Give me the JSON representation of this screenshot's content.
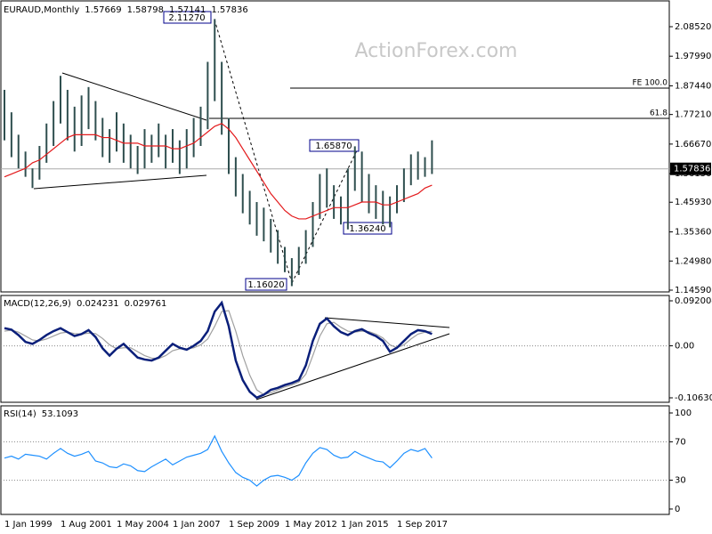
{
  "chart_data": [
    {
      "type": "ohlc",
      "title": "EURAUD,Monthly",
      "header_values": [
        1.57669,
        1.58798,
        1.57141,
        1.57836
      ],
      "watermark": "ActionForex.com",
      "categories": [
        "1 Jan 1999",
        null,
        null,
        null,
        null,
        null,
        null,
        null,
        "1 Aug 2001",
        null,
        null,
        null,
        null,
        null,
        null,
        null,
        "1 May 2004",
        null,
        null,
        null,
        null,
        null,
        null,
        null,
        "1 Jan 2007",
        null,
        null,
        null,
        null,
        null,
        null,
        null,
        "1 Sep 2009",
        null,
        null,
        null,
        null,
        null,
        null,
        null,
        "1 May 2012",
        null,
        null,
        null,
        null,
        null,
        null,
        null,
        "1 Jan 2015",
        null,
        null,
        null,
        null,
        null,
        null,
        null,
        "1 Sep 2017",
        null,
        null,
        null,
        null,
        null
      ],
      "high": [
        1.86,
        1.78,
        1.7,
        1.64,
        1.58,
        1.66,
        1.74,
        1.82,
        1.91,
        1.86,
        1.8,
        1.84,
        1.87,
        1.82,
        1.76,
        1.72,
        1.78,
        1.74,
        1.7,
        1.66,
        1.72,
        1.7,
        1.74,
        1.7,
        1.72,
        1.68,
        1.72,
        1.76,
        1.8,
        1.96,
        2.1127,
        1.96,
        1.76,
        1.62,
        1.56,
        1.5,
        1.46,
        1.44,
        1.4,
        1.36,
        1.3,
        1.26,
        1.3,
        1.36,
        1.46,
        1.56,
        1.58,
        1.52,
        1.48,
        1.58,
        1.6587,
        1.64,
        1.56,
        1.52,
        1.5,
        1.48,
        1.52,
        1.58,
        1.63,
        1.64,
        1.62,
        1.68
      ],
      "low": [
        1.68,
        1.62,
        1.58,
        1.55,
        1.51,
        1.54,
        1.6,
        1.66,
        1.74,
        1.68,
        1.64,
        1.66,
        1.72,
        1.68,
        1.62,
        1.6,
        1.64,
        1.6,
        1.58,
        1.56,
        1.58,
        1.6,
        1.62,
        1.58,
        1.6,
        1.56,
        1.58,
        1.62,
        1.66,
        1.72,
        1.82,
        1.7,
        1.56,
        1.48,
        1.42,
        1.38,
        1.34,
        1.32,
        1.28,
        1.24,
        1.21,
        1.1602,
        1.2,
        1.24,
        1.3,
        1.4,
        1.44,
        1.4,
        1.38,
        1.3624,
        1.5,
        1.46,
        1.42,
        1.4,
        1.38,
        1.37,
        1.42,
        1.46,
        1.52,
        1.54,
        1.55,
        1.56
      ],
      "color": "#2f4f4f",
      "series": [
        {
          "color": "#e31a1c",
          "values": [
            1.55,
            1.56,
            1.57,
            1.58,
            1.6,
            1.61,
            1.63,
            1.65,
            1.67,
            1.69,
            1.7,
            1.7,
            1.7,
            1.7,
            1.69,
            1.69,
            1.68,
            1.67,
            1.67,
            1.67,
            1.66,
            1.66,
            1.66,
            1.66,
            1.65,
            1.65,
            1.66,
            1.67,
            1.69,
            1.71,
            1.73,
            1.74,
            1.72,
            1.69,
            1.65,
            1.61,
            1.57,
            1.53,
            1.49,
            1.46,
            1.43,
            1.41,
            1.4,
            1.4,
            1.41,
            1.42,
            1.43,
            1.44,
            1.44,
            1.44,
            1.45,
            1.46,
            1.46,
            1.46,
            1.45,
            1.45,
            1.46,
            1.47,
            1.48,
            1.49,
            1.51,
            1.52
          ]
        }
      ],
      "ylim": [
        1.1396,
        2.174
      ],
      "yticks": [
        {
          "value": 2.0852,
          "label": "2.08520"
        },
        {
          "value": 1.9799,
          "label": "1.97990"
        },
        {
          "value": 1.8744,
          "label": "1.87440"
        },
        {
          "value": 1.7721,
          "label": "1.77210"
        },
        {
          "value": 1.6667,
          "label": "1.66670"
        },
        {
          "value": 1.5613,
          "label": "1.56130"
        },
        {
          "value": 1.4593,
          "label": "1.45930"
        },
        {
          "value": 1.3536,
          "label": "1.35360"
        },
        {
          "value": 1.2498,
          "label": "1.24980"
        },
        {
          "value": 1.1459,
          "label": "1.14590"
        }
      ],
      "last_price": 1.57836,
      "annotations": [
        "2.11270",
        "1.65870",
        "1.36240",
        "1.16020",
        "FE 100.0",
        "61.8"
      ]
    },
    {
      "type": "line",
      "title": "MACD(12,26,9)",
      "header_values": [
        0.024231,
        0.029761
      ],
      "series": [
        {
          "color": "#0a1f7a",
          "values": [
            0.036,
            0.033,
            0.022,
            0.008,
            0.004,
            0.012,
            0.022,
            0.03,
            0.036,
            0.028,
            0.02,
            0.024,
            0.032,
            0.018,
            -0.005,
            -0.02,
            -0.006,
            0.004,
            -0.01,
            -0.024,
            -0.028,
            -0.03,
            -0.024,
            -0.01,
            0.004,
            -0.004,
            -0.008,
            0.0,
            0.01,
            0.03,
            0.07,
            0.088,
            0.04,
            -0.03,
            -0.07,
            -0.094,
            -0.106,
            -0.1,
            -0.09,
            -0.086,
            -0.08,
            -0.076,
            -0.07,
            -0.04,
            0.01,
            0.045,
            0.056,
            0.04,
            0.028,
            0.022,
            0.03,
            0.034,
            0.026,
            0.02,
            0.01,
            -0.012,
            -0.004,
            0.01,
            0.024,
            0.032,
            0.03,
            0.024231
          ]
        },
        {
          "color": "#a0a0a0",
          "values": [
            0.03,
            0.032,
            0.028,
            0.02,
            0.012,
            0.01,
            0.014,
            0.02,
            0.026,
            0.028,
            0.025,
            0.024,
            0.026,
            0.025,
            0.015,
            0.002,
            -0.006,
            -0.004,
            -0.004,
            -0.012,
            -0.02,
            -0.025,
            -0.026,
            -0.02,
            -0.01,
            -0.006,
            -0.006,
            -0.004,
            0.002,
            0.014,
            0.04,
            0.07,
            0.072,
            0.03,
            -0.02,
            -0.06,
            -0.09,
            -0.1,
            -0.096,
            -0.09,
            -0.084,
            -0.08,
            -0.074,
            -0.058,
            -0.02,
            0.02,
            0.045,
            0.048,
            0.038,
            0.03,
            0.028,
            0.03,
            0.029,
            0.024,
            0.016,
            0.002,
            -0.004,
            0.002,
            0.014,
            0.024,
            0.028,
            0.029761
          ]
        }
      ],
      "ylim": [
        -0.1154,
        0.1029
      ],
      "yticks": [
        0.092004,
        {
          "value": 0,
          "label": "0.00"
        },
        -0.106308
      ],
      "levels": [
        0
      ]
    },
    {
      "type": "line",
      "title": "RSI(14)",
      "header_values": [
        53.1093
      ],
      "series": [
        {
          "color": "#1e90ff",
          "values": [
            53,
            55,
            52,
            57,
            56,
            55,
            52,
            58,
            63,
            58,
            55,
            57,
            60,
            50,
            48,
            44,
            43,
            47,
            45,
            40,
            39,
            44,
            48,
            52,
            46,
            50,
            54,
            56,
            58,
            62,
            76,
            60,
            48,
            38,
            33,
            30,
            24,
            30,
            34,
            35,
            33,
            30,
            35,
            48,
            58,
            64,
            62,
            56,
            53,
            54,
            60,
            56,
            53,
            50,
            49,
            43,
            50,
            58,
            62,
            60,
            63,
            53.1093
          ]
        }
      ],
      "ylim": [
        -5.6,
        107.4
      ],
      "yticks": [
        100,
        70,
        30,
        0
      ],
      "levels": [
        70,
        30
      ]
    }
  ]
}
